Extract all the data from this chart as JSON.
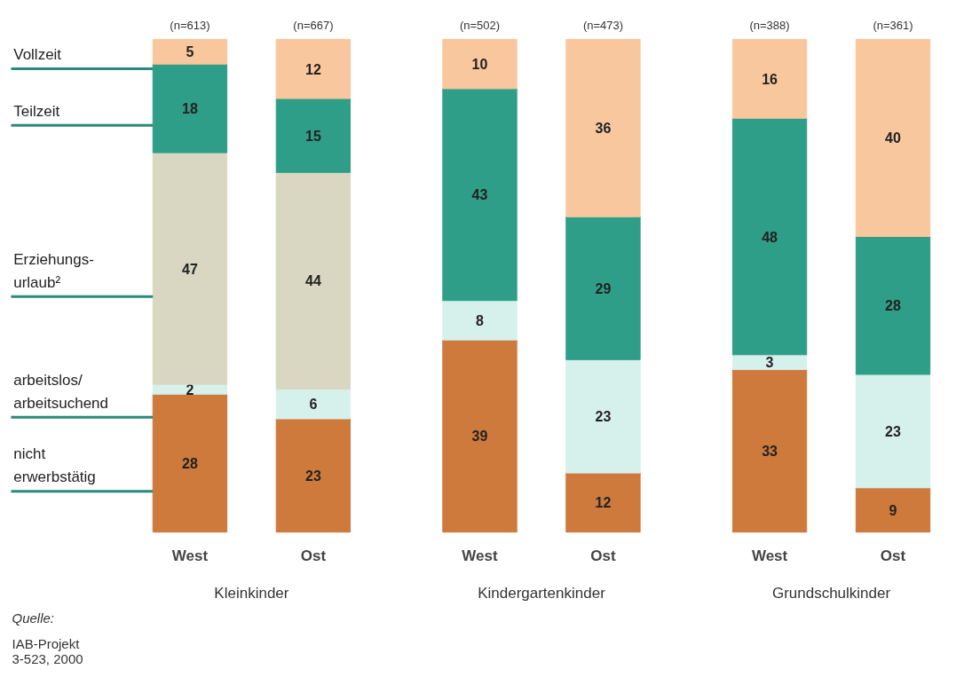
{
  "chart_data": {
    "type": "bar",
    "stacked": true,
    "data_labels": true,
    "grid": false,
    "legend": "left",
    "categories": [
      "West",
      "Ost",
      "West",
      "Ost",
      "West",
      "Ost"
    ],
    "series": [
      {
        "name": "nicht\nerwerbstätig",
        "color": "#cd7a3c",
        "values": [
          28,
          23,
          39,
          12,
          33,
          9
        ]
      },
      {
        "name": "arbeitslos/\narbeitsuchend",
        "color": "#d6f0ec",
        "values": [
          2,
          6,
          8,
          23,
          3,
          23
        ]
      },
      {
        "name": "Erziehungs-\nurlaub²",
        "color": "#d9d7c2",
        "values": [
          47,
          44,
          null,
          null,
          null,
          null
        ]
      },
      {
        "name": "Teilzeit",
        "color": "#2f9e88",
        "values": [
          18,
          15,
          43,
          29,
          48,
          28
        ]
      },
      {
        "name": "Vollzeit",
        "color": "#f9c79d",
        "values": [
          5,
          12,
          10,
          36,
          16,
          40
        ]
      }
    ],
    "annotations": [
      "(n=613)",
      "(n=667)",
      "(n=502)",
      "(n=473)",
      "(n=388)",
      "(n=361)",
      "Kleinkinder",
      "Kindergartenkinder",
      "Grundschulkinder",
      "Quelle:",
      "IAB-Projekt\n3-523, 2000"
    ]
  }
}
